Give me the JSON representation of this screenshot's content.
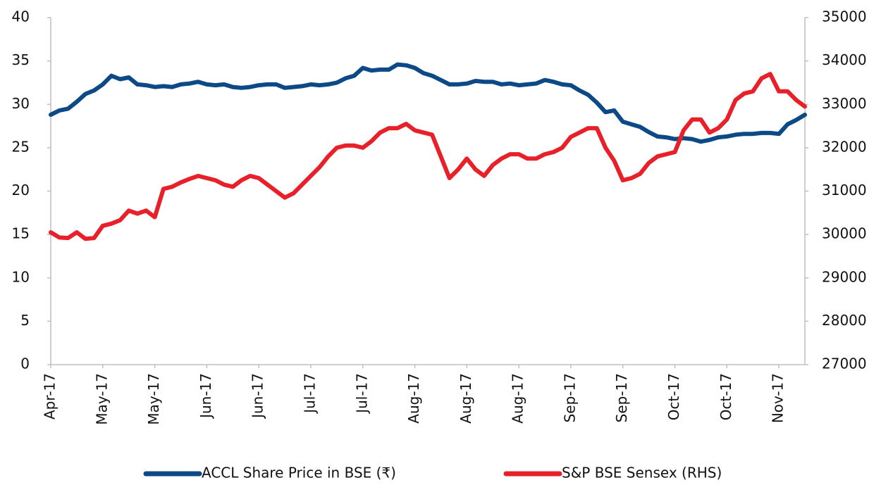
{
  "chart_data": {
    "type": "line",
    "categories": [
      "Apr-17",
      null,
      null,
      null,
      null,
      null,
      "May-17",
      null,
      null,
      null,
      null,
      null,
      "May-17",
      null,
      null,
      null,
      null,
      null,
      "Jun-17",
      null,
      null,
      null,
      null,
      null,
      "Jun-17",
      null,
      null,
      null,
      null,
      null,
      "Jul-17",
      null,
      null,
      null,
      null,
      null,
      "Jul-17",
      null,
      null,
      null,
      null,
      null,
      "Aug-17",
      null,
      null,
      null,
      null,
      null,
      "Aug-17",
      null,
      null,
      null,
      null,
      null,
      "Aug-17",
      null,
      null,
      null,
      null,
      null,
      "Sep-17",
      null,
      null,
      null,
      null,
      null,
      "Sep-17",
      null,
      null,
      null,
      null,
      null,
      "Oct-17",
      null,
      null,
      null,
      null,
      null,
      "Oct-17",
      null,
      null,
      null,
      null,
      null,
      "Nov-17",
      null,
      null,
      null
    ],
    "series": [
      {
        "name": "ACCL Share Price in BSE (₹)",
        "color": "#0b4a86",
        "values": [
          28.8,
          29.3,
          29.5,
          30.3,
          31.2,
          31.6,
          32.3,
          33.3,
          32.9,
          33.1,
          32.3,
          32.2,
          32.0,
          32.1,
          32.0,
          32.3,
          32.4,
          32.6,
          32.3,
          32.2,
          32.3,
          32.0,
          31.9,
          32.0,
          32.2,
          32.3,
          32.3,
          31.9,
          32.0,
          32.1,
          32.3,
          32.2,
          32.3,
          32.5,
          33.0,
          33.3,
          34.2,
          33.9,
          34.0,
          34.0,
          34.6,
          34.5,
          34.2,
          33.6,
          33.3,
          32.8,
          32.3,
          32.3,
          32.4,
          32.7,
          32.6,
          32.6,
          32.3,
          32.4,
          32.2,
          32.3,
          32.4,
          32.8,
          32.6,
          32.3,
          32.2,
          31.6,
          31.1,
          30.2,
          29.1,
          29.3,
          28.0,
          27.7,
          27.4,
          26.8,
          26.3,
          26.2,
          26.0,
          26.1,
          26.0,
          25.7,
          25.9,
          26.2,
          26.3,
          26.5,
          26.6,
          26.6,
          26.7,
          26.7,
          26.6,
          27.7,
          28.2,
          28.8
        ]
      },
      {
        "name": "S&P BSE Sensex (RHS)",
        "color": "#e8202a",
        "axis": "y2",
        "values": [
          30050,
          29930,
          29920,
          30050,
          29900,
          29920,
          30200,
          30250,
          30330,
          30550,
          30480,
          30550,
          30400,
          31050,
          31100,
          31200,
          31280,
          31350,
          31300,
          31250,
          31150,
          31100,
          31250,
          31350,
          31300,
          31150,
          31000,
          30850,
          30950,
          31150,
          31350,
          31550,
          31800,
          32000,
          32050,
          32050,
          32000,
          32150,
          32350,
          32450,
          32450,
          32550,
          32400,
          32350,
          32300,
          31800,
          31300,
          31500,
          31750,
          31500,
          31350,
          31600,
          31750,
          31850,
          31850,
          31750,
          31750,
          31850,
          31900,
          32000,
          32250,
          32350,
          32450,
          32450,
          32000,
          31700,
          31250,
          31300,
          31400,
          31650,
          31800,
          31850,
          31900,
          32400,
          32650,
          32650,
          32350,
          32450,
          32650,
          33100,
          33250,
          33300,
          33600,
          33700,
          33300,
          33300,
          33100,
          32950
        ]
      }
    ],
    "ylim": [
      0,
      40
    ],
    "yticks": [
      0,
      5,
      10,
      15,
      20,
      25,
      30,
      35,
      40
    ],
    "y2lim": [
      27000,
      35000
    ],
    "y2ticks": [
      27000,
      28000,
      29000,
      30000,
      31000,
      32000,
      33000,
      34000,
      35000
    ],
    "legend": "bottom"
  }
}
